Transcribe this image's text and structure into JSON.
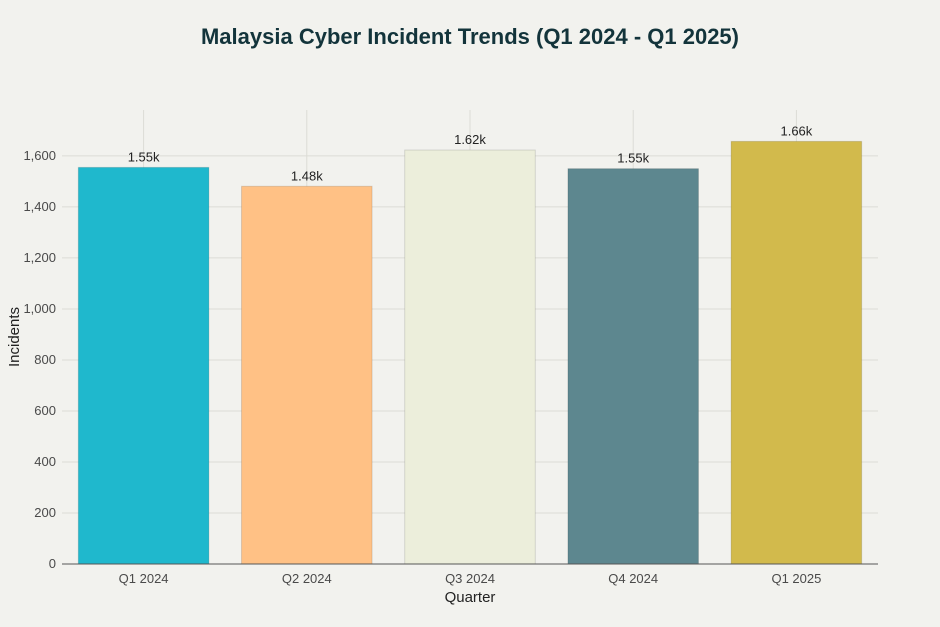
{
  "chart_data": {
    "type": "bar",
    "title": "Malaysia Cyber Incident Trends (Q1 2024 - Q1 2025)",
    "xlabel": "Quarter",
    "ylabel": "Incidents",
    "categories": [
      "Q1 2024",
      "Q2 2024",
      "Q3 2024",
      "Q4 2024",
      "Q1 2025"
    ],
    "values": [
      1555,
      1481,
      1623,
      1550,
      1657
    ],
    "data_labels": [
      "1.55k",
      "1.48k",
      "1.62k",
      "1.55k",
      "1.66k"
    ],
    "colors": [
      "#1fb8cd",
      "#ffc185",
      "#eceedb",
      "#5d878f",
      "#d2ba4c"
    ],
    "ylim": [
      0,
      1780
    ],
    "yticks": [
      0,
      200,
      400,
      600,
      800,
      1000,
      1200,
      1400,
      1600
    ],
    "ytick_labels": [
      "0",
      "200",
      "400",
      "600",
      "800",
      "1,000",
      "1,200",
      "1,400",
      "1,600"
    ],
    "grid": true
  }
}
